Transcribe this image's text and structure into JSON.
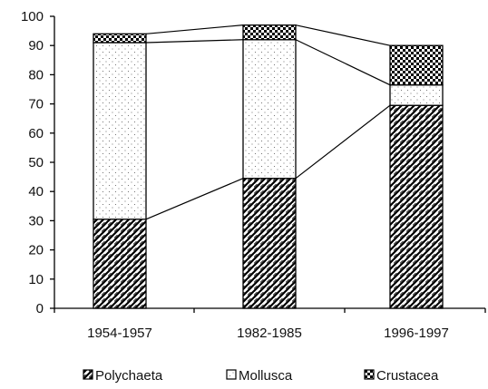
{
  "chart_data": {
    "type": "bar",
    "stacked": true,
    "categories": [
      "1954-1957",
      "1982-1985",
      "1996-1997"
    ],
    "series": [
      {
        "name": "Polychaeta",
        "values": [
          30.5,
          44.5,
          69.5
        ],
        "pattern": "diagonal-hatch"
      },
      {
        "name": "Mollusca",
        "values": [
          60.5,
          47.5,
          7
        ],
        "pattern": "dots"
      },
      {
        "name": "Crustacea",
        "values": [
          3,
          5,
          13.5
        ],
        "pattern": "checker"
      }
    ],
    "ylim": [
      0,
      100
    ],
    "yticks": [
      0,
      10,
      20,
      30,
      40,
      50,
      60,
      70,
      80,
      90,
      100
    ],
    "connector_lines": true,
    "grid": false,
    "legend_position": "bottom",
    "colors": {
      "axis": "#000000",
      "background": "#ffffff"
    }
  }
}
